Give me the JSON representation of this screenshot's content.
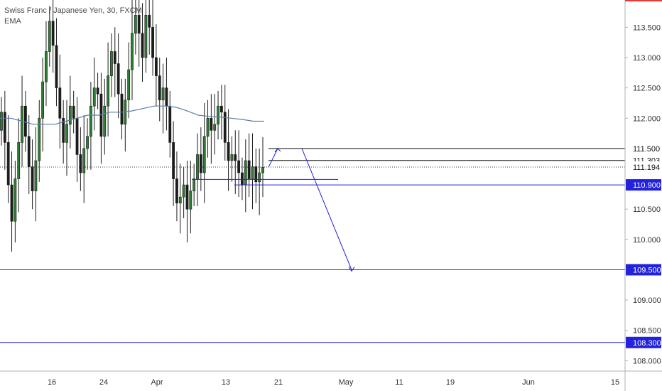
{
  "header": {
    "title": "Swiss Franc / Japanese Yen, 30, FXCM",
    "indicator": "EMA"
  },
  "colors": {
    "up_candle": "#2e7d32",
    "down_candle": "#1c1c1c",
    "ema": "#5a7fa8",
    "support": "#2222dd",
    "resistance": "#111111",
    "current": "#333333",
    "accent_top": "#e53935"
  },
  "chart_data": {
    "type": "candlestick",
    "ylim": [
      107.5,
      113.95
    ],
    "y_ticks": [
      "113.500",
      "113.000",
      "112.500",
      "112.000",
      "110.500",
      "110.000",
      "109.000",
      "108.500",
      "108.000"
    ],
    "x_ticks": [
      "16",
      "24",
      "Apr",
      "13",
      "21",
      "May",
      "11",
      "19",
      "Jun",
      "15"
    ],
    "close_series": [
      112.1,
      111.6,
      110.9,
      110.3,
      111.0,
      111.6,
      112.2,
      111.7,
      111.2,
      110.8,
      111.3,
      112.0,
      112.6,
      113.1,
      113.6,
      113.2,
      112.5,
      112.0,
      111.6,
      111.9,
      112.2,
      112.0,
      111.4,
      111.1,
      111.5,
      111.7,
      112.2,
      112.5,
      112.4,
      111.7,
      112.2,
      112.7,
      113.1,
      112.9,
      112.4,
      111.9,
      112.3,
      112.8,
      113.4,
      113.7,
      113.4,
      113.0,
      113.7,
      113.5,
      113.0,
      112.7,
      112.3,
      112.5,
      112.2,
      111.6,
      111.0,
      110.6,
      110.7,
      110.9,
      110.5,
      110.8,
      111.0,
      111.4,
      111.1,
      111.7,
      112.0,
      111.8,
      111.9,
      112.2,
      112.1,
      111.6,
      111.3,
      111.4,
      111.3,
      111.1,
      110.9,
      111.3,
      111.0,
      111.2,
      110.95,
      111.1,
      111.19
    ],
    "ema_series": [
      112.0,
      112.0,
      111.95,
      111.9,
      111.9,
      111.9,
      111.95,
      112.0,
      112.05,
      112.05,
      112.1,
      112.1,
      112.12,
      112.16,
      112.2,
      112.2,
      112.18,
      112.12,
      112.05,
      112.03,
      112.02,
      112.0,
      111.98,
      111.95,
      111.95
    ],
    "lines": [
      {
        "price": 111.5,
        "label": "111.500",
        "style": "solid",
        "color": "#111111"
      },
      {
        "price": 111.303,
        "label": "111.303",
        "style": "solid",
        "color": "#111111"
      },
      {
        "price": 111.194,
        "label": "111.194",
        "style": "dotted",
        "color": "#333333"
      },
      {
        "price": 110.9,
        "label": "110.900",
        "style": "solid",
        "color": "#2222dd"
      },
      {
        "price": 109.5,
        "label": "109.500",
        "style": "solid",
        "color": "#2222dd"
      },
      {
        "price": 108.3,
        "label": "108.300",
        "style": "solid",
        "color": "#2222dd"
      }
    ],
    "forecast_path": [
      {
        "date": "Apr 19",
        "price": 111.19
      },
      {
        "date": "Apr 21",
        "price": 111.5
      },
      {
        "date": "Apr 24",
        "price": 111.5
      },
      {
        "date": "May 1",
        "price": 109.5
      }
    ]
  }
}
